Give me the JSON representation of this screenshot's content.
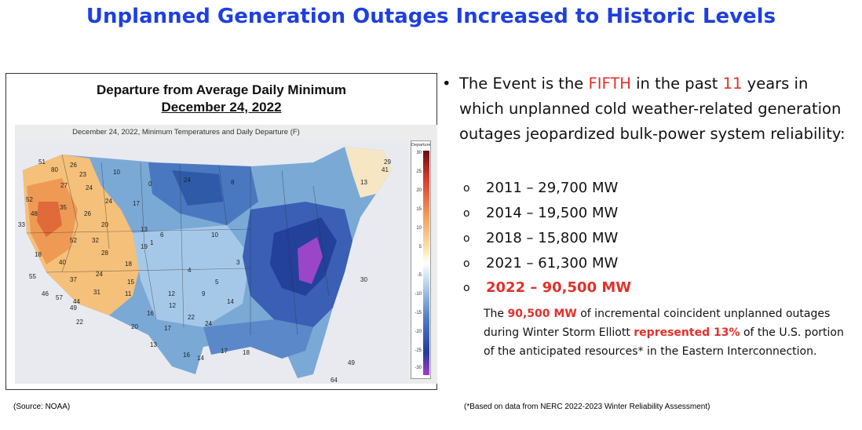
{
  "title": "Unplanned Generation Outages Increased to Historic Levels",
  "map": {
    "title_line1": "Departure from Average Daily Minimum",
    "title_line2": "December 24, 2022",
    "caption": "December 24, 2022, Minimum Temperatures and Daily Departure (F)",
    "colorbar_title": "Departure",
    "colorbar_ticks": [
      "30",
      "25",
      "20",
      "15",
      "10",
      "5",
      "-5",
      "-10",
      "-15",
      "-20",
      "-25",
      "-30"
    ],
    "labels": [
      "51",
      "26",
      "80",
      "23",
      "10",
      "27",
      "24",
      "52",
      "24",
      "17",
      "0",
      "24",
      "8",
      "35",
      "26",
      "48",
      "33",
      "20",
      "13",
      "52",
      "32",
      "18",
      "28",
      "40",
      "18",
      "24",
      "15",
      "19",
      "55",
      "46",
      "37",
      "6",
      "31",
      "57",
      "44",
      "49",
      "22",
      "11",
      "16",
      "12",
      "20",
      "17",
      "24",
      "22",
      "12",
      "13",
      "16",
      "14",
      "17",
      "18",
      "5",
      "10",
      "9",
      "4",
      "1",
      "3",
      "14",
      "30",
      "64",
      "49",
      "29",
      "41",
      "13"
    ]
  },
  "bullet": {
    "seg1": "The Event is the ",
    "fifth": "FIFTH",
    "seg2": " in the past ",
    "eleven": "11",
    "seg3": " years in which unplanned cold weather-related generation outages jeopardized bulk-power system reliability:"
  },
  "years": [
    {
      "marker": "o",
      "text": "2011 – 29,700 MW"
    },
    {
      "marker": "o",
      "text": "2014 – 19,500 MW"
    },
    {
      "marker": "o",
      "text": "2018 – 15,800 MW"
    },
    {
      "marker": "o",
      "text": "2021 – 61,300 MW"
    },
    {
      "marker": "o",
      "text": "2022 – 90,500 MW"
    }
  ],
  "note": {
    "seg1": "The ",
    "mw": "90,500 MW",
    "seg2": " of incremental coincident unplanned outages during Winter Storm Elliott ",
    "pct": "represented 13%",
    "seg3": " of the U.S. portion of the anticipated resources* in the Eastern Interconnection."
  },
  "source_left": "(Source: NOAA)",
  "source_right": "(*Based on data from NERC 2022-2023 Winter Reliability Assessment)",
  "colors": {
    "title": "#1f3fe0",
    "highlight": "#e0312b"
  }
}
